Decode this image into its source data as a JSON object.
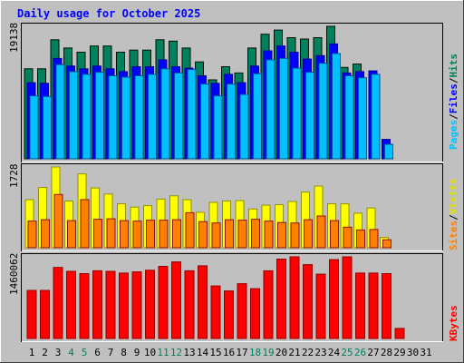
{
  "chart_data": [
    {
      "type": "bar",
      "title": "Daily usage for October 2025",
      "x": [
        1,
        2,
        3,
        4,
        5,
        6,
        7,
        8,
        9,
        10,
        11,
        12,
        13,
        14,
        15,
        16,
        17,
        18,
        19,
        20,
        21,
        22,
        23,
        24,
        25,
        26,
        27,
        28,
        29,
        30,
        31
      ],
      "weekend_days": [
        4,
        5,
        11,
        12,
        18,
        19,
        25,
        26
      ],
      "ymax_label": "19138",
      "ymax": 19138,
      "right_labels": [
        "Pages",
        "Files",
        "Hits"
      ],
      "series": [
        {
          "name": "Hits",
          "color": "#00805c",
          "values": [
            13000,
            13000,
            17200,
            16000,
            15400,
            16300,
            16300,
            15400,
            15700,
            15700,
            17200,
            17000,
            16000,
            14000,
            11400,
            13300,
            12400,
            16000,
            18000,
            18600,
            17500,
            17300,
            17500,
            19138,
            13200,
            13700,
            0,
            0,
            0,
            0,
            0
          ]
        },
        {
          "name": "Files",
          "color": "#0000ff",
          "values": [
            11000,
            10900,
            14500,
            13400,
            13000,
            13400,
            13000,
            12600,
            13300,
            13300,
            14300,
            13300,
            13100,
            12000,
            10900,
            12200,
            11000,
            13400,
            15600,
            16300,
            15400,
            14400,
            14900,
            16600,
            12400,
            12600,
            12700,
            2800,
            0,
            0,
            0
          ]
        },
        {
          "name": "Pages",
          "color": "#00c0ff",
          "values": [
            9100,
            9000,
            13600,
            12600,
            12200,
            12500,
            12000,
            11800,
            12000,
            12200,
            13000,
            12400,
            12900,
            10800,
            9100,
            10800,
            9300,
            12300,
            14300,
            14500,
            13100,
            12500,
            13800,
            15200,
            12000,
            11700,
            12200,
            2100,
            0,
            0,
            0
          ]
        }
      ]
    },
    {
      "type": "bar",
      "ymax_label": "1728",
      "ymax": 1728,
      "right_labels": [
        "Sites",
        "Visits"
      ],
      "series": [
        {
          "name": "Visits",
          "color": "#ffff00",
          "values": [
            1030,
            1290,
            1728,
            1000,
            1580,
            1280,
            1150,
            940,
            870,
            900,
            1040,
            1110,
            1030,
            760,
            970,
            1000,
            1010,
            830,
            910,
            920,
            990,
            1190,
            1320,
            940,
            940,
            740,
            850,
            220,
            0,
            0,
            0
          ]
        },
        {
          "name": "Sites",
          "color": "#ff8000",
          "values": [
            570,
            600,
            1140,
            580,
            1030,
            610,
            620,
            580,
            570,
            590,
            590,
            600,
            750,
            560,
            530,
            600,
            590,
            610,
            570,
            540,
            530,
            600,
            680,
            580,
            440,
            380,
            390,
            170,
            0,
            0,
            0
          ]
        }
      ]
    },
    {
      "type": "bar",
      "ymax_label": "1460062",
      "ymax": 1460062,
      "right_labels": [
        "KBytes"
      ],
      "series": [
        {
          "name": "KBytes",
          "color": "#ff0000",
          "values": [
            860000,
            860000,
            1270000,
            1200000,
            1160000,
            1210000,
            1200000,
            1170000,
            1190000,
            1220000,
            1290000,
            1370000,
            1210000,
            1300000,
            940000,
            850000,
            980000,
            890000,
            1210000,
            1420000,
            1460000,
            1320000,
            1150000,
            1410000,
            1460062,
            1170000,
            1170000,
            1160000,
            180000,
            0,
            0
          ]
        }
      ]
    }
  ]
}
